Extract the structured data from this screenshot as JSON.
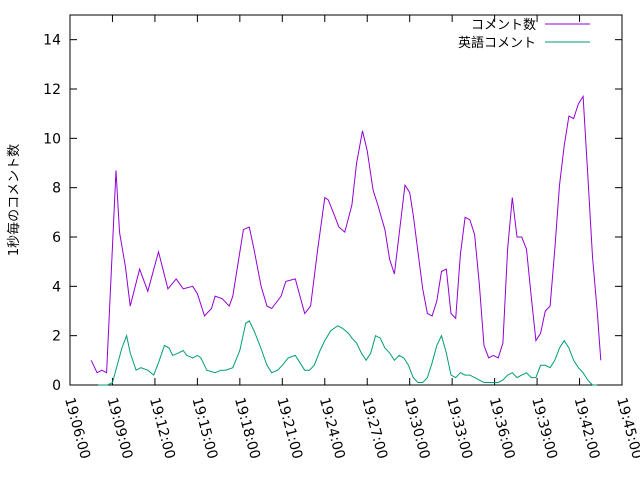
{
  "chart_data": {
    "type": "line",
    "ylabel": "1秒毎のコメント数",
    "xlabel": "",
    "ylim": [
      0,
      15
    ],
    "yticks": [
      0,
      2,
      4,
      6,
      8,
      10,
      12,
      14
    ],
    "xlim": [
      "19:06:00",
      "19:45:00"
    ],
    "xticks": [
      "19:06:00",
      "19:09:00",
      "19:12:00",
      "19:15:00",
      "19:18:00",
      "19:21:00",
      "19:24:00",
      "19:27:00",
      "19:30:00",
      "19:33:00",
      "19:36:00",
      "19:39:00",
      "19:42:00",
      "19:45:00"
    ],
    "legend_position": "top-right",
    "grid": false,
    "series": [
      {
        "name": "コメント数",
        "color": "#9400d3",
        "points": [
          [
            "19:07:30",
            1.0
          ],
          [
            "19:07:55",
            0.5
          ],
          [
            "19:08:15",
            0.6
          ],
          [
            "19:08:35",
            0.5
          ],
          [
            "19:09:15",
            8.7
          ],
          [
            "19:09:30",
            6.2
          ],
          [
            "19:09:55",
            4.8
          ],
          [
            "19:10:15",
            3.2
          ],
          [
            "19:10:55",
            4.7
          ],
          [
            "19:11:30",
            3.8
          ],
          [
            "19:12:15",
            5.4
          ],
          [
            "19:12:55",
            3.9
          ],
          [
            "19:13:30",
            4.3
          ],
          [
            "19:14:00",
            3.9
          ],
          [
            "19:14:40",
            4.0
          ],
          [
            "19:15:00",
            3.7
          ],
          [
            "19:15:30",
            2.8
          ],
          [
            "19:16:00",
            3.1
          ],
          [
            "19:16:15",
            3.6
          ],
          [
            "19:16:45",
            3.5
          ],
          [
            "19:17:15",
            3.2
          ],
          [
            "19:17:30",
            3.6
          ],
          [
            "19:18:15",
            6.3
          ],
          [
            "19:18:40",
            6.4
          ],
          [
            "19:19:00",
            5.5
          ],
          [
            "19:19:30",
            4.0
          ],
          [
            "19:19:55",
            3.2
          ],
          [
            "19:20:15",
            3.1
          ],
          [
            "19:20:55",
            3.6
          ],
          [
            "19:21:15",
            4.2
          ],
          [
            "19:21:55",
            4.3
          ],
          [
            "19:22:35",
            2.9
          ],
          [
            "19:23:00",
            3.2
          ],
          [
            "19:23:30",
            5.5
          ],
          [
            "19:24:00",
            7.6
          ],
          [
            "19:24:15",
            7.5
          ],
          [
            "19:24:40",
            6.9
          ],
          [
            "19:25:00",
            6.4
          ],
          [
            "19:25:25",
            6.2
          ],
          [
            "19:25:55",
            7.3
          ],
          [
            "19:26:15",
            9.0
          ],
          [
            "19:26:40",
            10.3
          ],
          [
            "19:27:00",
            9.5
          ],
          [
            "19:27:25",
            7.9
          ],
          [
            "19:27:45",
            7.3
          ],
          [
            "19:28:15",
            6.3
          ],
          [
            "19:28:35",
            5.1
          ],
          [
            "19:28:55",
            4.5
          ],
          [
            "19:29:15",
            6.1
          ],
          [
            "19:29:40",
            8.1
          ],
          [
            "19:30:00",
            7.8
          ],
          [
            "19:30:15",
            6.9
          ],
          [
            "19:30:55",
            3.9
          ],
          [
            "19:31:15",
            2.9
          ],
          [
            "19:31:35",
            2.8
          ],
          [
            "19:31:55",
            3.4
          ],
          [
            "19:32:15",
            4.6
          ],
          [
            "19:32:35",
            4.7
          ],
          [
            "19:32:55",
            2.9
          ],
          [
            "19:33:15",
            2.7
          ],
          [
            "19:33:35",
            5.3
          ],
          [
            "19:33:55",
            6.8
          ],
          [
            "19:34:15",
            6.7
          ],
          [
            "19:34:35",
            6.1
          ],
          [
            "19:34:55",
            4.1
          ],
          [
            "19:35:15",
            1.6
          ],
          [
            "19:35:35",
            1.1
          ],
          [
            "19:35:55",
            1.2
          ],
          [
            "19:36:15",
            1.1
          ],
          [
            "19:36:35",
            1.7
          ],
          [
            "19:36:55",
            5.5
          ],
          [
            "19:37:15",
            7.6
          ],
          [
            "19:37:35",
            6.0
          ],
          [
            "19:37:55",
            6.0
          ],
          [
            "19:38:15",
            5.5
          ],
          [
            "19:38:35",
            3.6
          ],
          [
            "19:38:55",
            1.8
          ],
          [
            "19:39:15",
            2.1
          ],
          [
            "19:39:35",
            3.0
          ],
          [
            "19:39:55",
            3.2
          ],
          [
            "19:40:15",
            5.5
          ],
          [
            "19:40:35",
            8.1
          ],
          [
            "19:40:55",
            9.7
          ],
          [
            "19:41:15",
            10.9
          ],
          [
            "19:41:35",
            10.8
          ],
          [
            "19:41:55",
            11.4
          ],
          [
            "19:42:15",
            11.7
          ],
          [
            "19:42:35",
            8.5
          ],
          [
            "19:42:55",
            5.2
          ],
          [
            "19:43:15",
            3.0
          ],
          [
            "19:43:30",
            1.0
          ]
        ]
      },
      {
        "name": "英語コメント",
        "color": "#009e73",
        "points": [
          [
            "19:08:00",
            0.0
          ],
          [
            "19:08:40",
            0.0
          ],
          [
            "19:09:00",
            0.1
          ],
          [
            "19:09:40",
            1.5
          ],
          [
            "19:10:00",
            2.0
          ],
          [
            "19:10:15",
            1.3
          ],
          [
            "19:10:40",
            0.6
          ],
          [
            "19:11:00",
            0.7
          ],
          [
            "19:11:30",
            0.6
          ],
          [
            "19:11:55",
            0.4
          ],
          [
            "19:12:15",
            0.9
          ],
          [
            "19:12:40",
            1.6
          ],
          [
            "19:13:00",
            1.5
          ],
          [
            "19:13:15",
            1.2
          ],
          [
            "19:13:40",
            1.3
          ],
          [
            "19:14:00",
            1.4
          ],
          [
            "19:14:15",
            1.2
          ],
          [
            "19:14:40",
            1.1
          ],
          [
            "19:15:00",
            1.2
          ],
          [
            "19:15:15",
            1.1
          ],
          [
            "19:15:40",
            0.6
          ],
          [
            "19:16:15",
            0.5
          ],
          [
            "19:16:40",
            0.6
          ],
          [
            "19:17:00",
            0.6
          ],
          [
            "19:17:30",
            0.7
          ],
          [
            "19:18:00",
            1.4
          ],
          [
            "19:18:25",
            2.5
          ],
          [
            "19:18:40",
            2.6
          ],
          [
            "19:19:00",
            2.2
          ],
          [
            "19:19:25",
            1.6
          ],
          [
            "19:19:55",
            0.8
          ],
          [
            "19:20:15",
            0.5
          ],
          [
            "19:20:40",
            0.6
          ],
          [
            "19:21:00",
            0.8
          ],
          [
            "19:21:25",
            1.1
          ],
          [
            "19:21:55",
            1.2
          ],
          [
            "19:22:15",
            0.9
          ],
          [
            "19:22:35",
            0.6
          ],
          [
            "19:22:55",
            0.6
          ],
          [
            "19:23:15",
            0.8
          ],
          [
            "19:23:40",
            1.4
          ],
          [
            "19:24:00",
            1.8
          ],
          [
            "19:24:25",
            2.2
          ],
          [
            "19:24:55",
            2.4
          ],
          [
            "19:25:15",
            2.3
          ],
          [
            "19:25:40",
            2.1
          ],
          [
            "19:25:55",
            1.9
          ],
          [
            "19:26:15",
            1.7
          ],
          [
            "19:26:35",
            1.3
          ],
          [
            "19:26:55",
            1.0
          ],
          [
            "19:27:15",
            1.3
          ],
          [
            "19:27:35",
            2.0
          ],
          [
            "19:27:55",
            1.9
          ],
          [
            "19:28:15",
            1.5
          ],
          [
            "19:28:35",
            1.3
          ],
          [
            "19:28:55",
            1.0
          ],
          [
            "19:29:15",
            1.2
          ],
          [
            "19:29:35",
            1.1
          ],
          [
            "19:29:55",
            0.8
          ],
          [
            "19:30:15",
            0.3
          ],
          [
            "19:30:35",
            0.1
          ],
          [
            "19:30:55",
            0.1
          ],
          [
            "19:31:15",
            0.3
          ],
          [
            "19:31:35",
            0.9
          ],
          [
            "19:31:55",
            1.6
          ],
          [
            "19:32:15",
            2.0
          ],
          [
            "19:32:35",
            1.3
          ],
          [
            "19:32:55",
            0.4
          ],
          [
            "19:33:15",
            0.3
          ],
          [
            "19:33:35",
            0.5
          ],
          [
            "19:33:55",
            0.4
          ],
          [
            "19:34:15",
            0.4
          ],
          [
            "19:34:35",
            0.3
          ],
          [
            "19:34:55",
            0.2
          ],
          [
            "19:35:15",
            0.1
          ],
          [
            "19:35:35",
            0.1
          ],
          [
            "19:35:55",
            0.1
          ],
          [
            "19:36:15",
            0.1
          ],
          [
            "19:36:35",
            0.2
          ],
          [
            "19:36:55",
            0.4
          ],
          [
            "19:37:15",
            0.5
          ],
          [
            "19:37:35",
            0.3
          ],
          [
            "19:37:55",
            0.4
          ],
          [
            "19:38:15",
            0.5
          ],
          [
            "19:38:35",
            0.3
          ],
          [
            "19:38:55",
            0.3
          ],
          [
            "19:39:15",
            0.8
          ],
          [
            "19:39:35",
            0.8
          ],
          [
            "19:39:55",
            0.7
          ],
          [
            "19:40:15",
            1.0
          ],
          [
            "19:40:35",
            1.5
          ],
          [
            "19:40:55",
            1.8
          ],
          [
            "19:41:15",
            1.5
          ],
          [
            "19:41:35",
            1.0
          ],
          [
            "19:41:55",
            0.7
          ],
          [
            "19:42:15",
            0.5
          ],
          [
            "19:42:35",
            0.2
          ],
          [
            "19:42:55",
            0.0
          ],
          [
            "19:43:15",
            0.0
          ]
        ]
      }
    ]
  }
}
